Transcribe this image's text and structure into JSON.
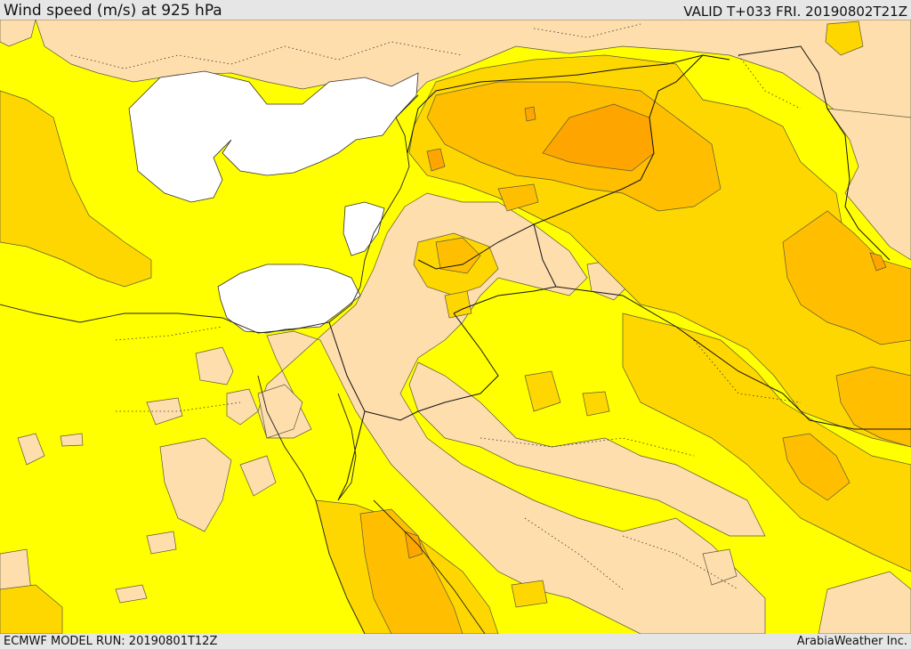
{
  "header": {
    "title": "Wind speed (m/s) at 925 hPa",
    "valid": "VALID T+033 FRI. 20190802T21Z"
  },
  "footer": {
    "model_run": "ECMWF MODEL RUN: 20190801T12Z",
    "credit": "ArabiaWeather Inc."
  },
  "colors": {
    "calm": "#ffdead",
    "light": "#ffff00",
    "moderate": "#ffd700",
    "fresh": "#ffbf00",
    "strong": "#ffa500",
    "sea_masked": "#ffffff",
    "border": "#000000",
    "contour": "#4a4a2a"
  }
}
